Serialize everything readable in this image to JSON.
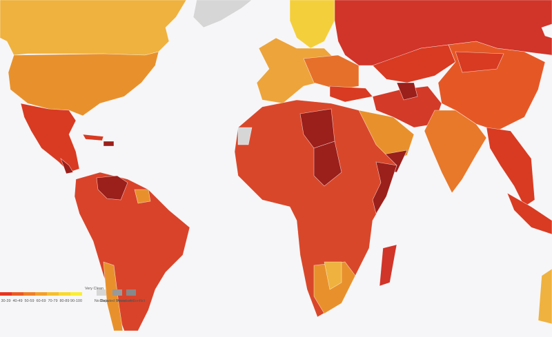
{
  "legend": {
    "bins": [
      "30-39",
      "40-49",
      "50-59",
      "60-69",
      "70-79",
      "80-89",
      "90-100"
    ],
    "end_label": "Very Clean",
    "no_data": "No Data",
    "disputed": "Disputed Boundaries",
    "conflict": "Areas of Conflict"
  }
}
